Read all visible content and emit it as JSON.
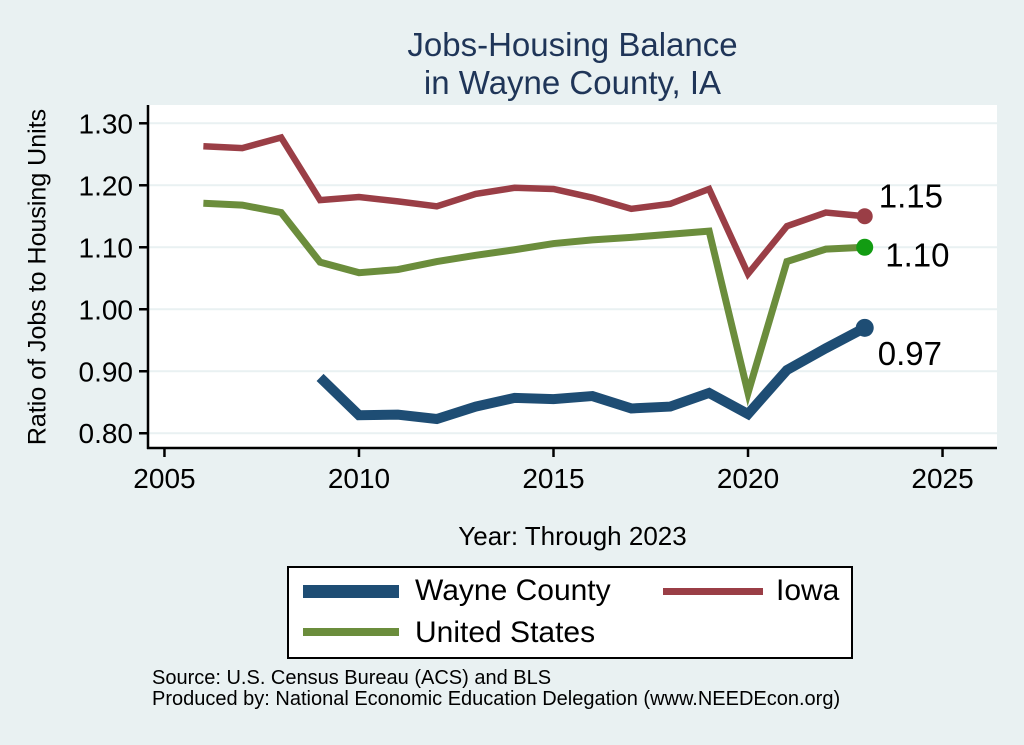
{
  "title": {
    "line1": "Jobs-Housing Balance",
    "line2": "in Wayne County, IA"
  },
  "colors": {
    "background": "#e9f1f2",
    "plot_background": "#ffffff",
    "gridline": "#e9f1f2",
    "axis": "#000000",
    "title_text": "#1f3558",
    "wayne_county": "#1e4d74",
    "iowa": "#9a3e46",
    "united_states": "#6b8d3c",
    "united_states_end_marker": "#129c12"
  },
  "chart_data": {
    "type": "line",
    "x": [
      2006,
      2007,
      2008,
      2009,
      2010,
      2011,
      2012,
      2013,
      2014,
      2015,
      2016,
      2017,
      2018,
      2019,
      2020,
      2021,
      2022,
      2023
    ],
    "series": [
      {
        "name": "Wayne County",
        "color": "#1e4d74",
        "marker_color": "#1e4d74",
        "line_width": 10,
        "end_label": "0.97",
        "values": [
          null,
          null,
          null,
          0.89,
          0.829,
          0.83,
          0.823,
          0.843,
          0.857,
          0.855,
          0.86,
          0.84,
          0.843,
          0.865,
          0.831,
          0.902,
          0.937,
          0.97
        ]
      },
      {
        "name": "Iowa",
        "color": "#9a3e46",
        "marker_color": "#9a3e46",
        "line_width": 6.5,
        "end_label": "1.15",
        "values": [
          1.263,
          1.26,
          1.277,
          1.176,
          1.181,
          1.174,
          1.166,
          1.186,
          1.196,
          1.194,
          1.18,
          1.162,
          1.17,
          1.194,
          1.057,
          1.134,
          1.156,
          1.15
        ]
      },
      {
        "name": "United States",
        "color": "#6b8d3c",
        "marker_color": "#129c12",
        "line_width": 7,
        "end_label": "1.10",
        "values": [
          1.171,
          1.168,
          1.156,
          1.076,
          1.059,
          1.064,
          1.077,
          1.087,
          1.096,
          1.106,
          1.112,
          1.116,
          1.121,
          1.126,
          0.865,
          1.077,
          1.097,
          1.1
        ]
      }
    ],
    "xlabel": "Year: Through 2023",
    "ylabel": "Ratio of Jobs to Housing Units",
    "x_ticks": [
      2005,
      2010,
      2015,
      2020,
      2025
    ],
    "x_tick_labels": [
      "2005",
      "2010",
      "2015",
      "2020",
      "2025"
    ],
    "y_ticks": [
      0.8,
      0.9,
      1.0,
      1.1,
      1.2,
      1.3
    ],
    "y_tick_labels": [
      "0.80",
      "0.90",
      "1.00",
      "1.10",
      "1.20",
      "1.30"
    ],
    "xlim": [
      2004.577,
      2026.4
    ],
    "ylim": [
      0.7762,
      1.3295
    ],
    "grid": "horizontal",
    "legend_position": "bottom"
  },
  "legend": {
    "entries": [
      "Wayne County",
      "Iowa",
      "United States"
    ]
  },
  "notes": {
    "source": "Source: U.S. Census Bureau (ACS) and BLS",
    "produced_by": "Produced by: National Economic Education Delegation (www.NEEDEcon.org)"
  }
}
